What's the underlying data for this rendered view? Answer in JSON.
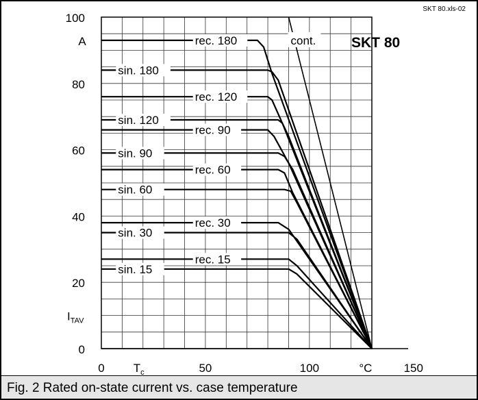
{
  "figure": {
    "file_tag": "SKT 80.xls-02",
    "device": "SKT 80",
    "caption": "Fig. 2 Rated on-state current vs. case temperature"
  },
  "chart_data": {
    "type": "line",
    "title": "SKT 80",
    "xlim": [
      0,
      130
    ],
    "ylim": [
      0,
      100
    ],
    "x_ticks": [
      "0",
      "50",
      "100",
      "150"
    ],
    "y_ticks": [
      "0",
      "20",
      "40",
      "60",
      "80",
      "100"
    ],
    "x_unit": "°C",
    "y_unit": "A",
    "xlabel": "T",
    "xlabel_sub": "c",
    "ylabel": "I",
    "ylabel_sub": "TAV",
    "grid": true,
    "series": [
      {
        "name": "cont.",
        "x": [
          90,
          130
        ],
        "y": [
          100,
          0
        ]
      },
      {
        "name": "rec. 180",
        "x": [
          0,
          75,
          78,
          82,
          130
        ],
        "y": [
          93,
          93,
          91,
          83,
          0
        ]
      },
      {
        "name": "sin. 180",
        "x": [
          0,
          80,
          82,
          85,
          130
        ],
        "y": [
          84,
          84,
          83.5,
          81,
          0
        ]
      },
      {
        "name": "rec. 120",
        "x": [
          0,
          80,
          82,
          87,
          130
        ],
        "y": [
          76,
          76,
          75,
          68,
          0
        ]
      },
      {
        "name": "sin. 120",
        "x": [
          0,
          85,
          87,
          90,
          130
        ],
        "y": [
          69,
          69,
          68,
          64,
          0
        ]
      },
      {
        "name": "rec. 90",
        "x": [
          0,
          80,
          83,
          90,
          130
        ],
        "y": [
          66,
          66,
          64,
          56,
          0
        ]
      },
      {
        "name": "sin. 90",
        "x": [
          0,
          85,
          88,
          92,
          130
        ],
        "y": [
          59,
          59,
          58,
          54,
          0
        ]
      },
      {
        "name": "rec. 60",
        "x": [
          0,
          85,
          88,
          92,
          130
        ],
        "y": [
          54,
          54,
          53,
          47,
          0
        ]
      },
      {
        "name": "sin. 60",
        "x": [
          0,
          88,
          91,
          94,
          130
        ],
        "y": [
          48,
          48,
          47.5,
          44,
          0
        ]
      },
      {
        "name": "rec. 30",
        "x": [
          0,
          85,
          90,
          130
        ],
        "y": [
          38,
          38,
          36,
          0
        ]
      },
      {
        "name": "sin. 30",
        "x": [
          0,
          90,
          94,
          130
        ],
        "y": [
          35,
          35,
          33,
          0
        ]
      },
      {
        "name": "rec. 15",
        "x": [
          0,
          90,
          94,
          130
        ],
        "y": [
          27,
          27,
          25,
          0
        ]
      },
      {
        "name": "sin. 15",
        "x": [
          0,
          90,
          94,
          130
        ],
        "y": [
          24,
          24,
          22.5,
          0
        ]
      }
    ]
  }
}
